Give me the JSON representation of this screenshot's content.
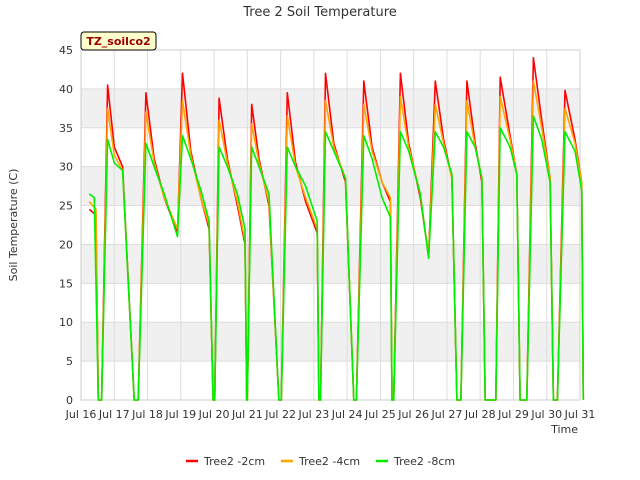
{
  "chart_data": {
    "type": "line",
    "title": "Tree 2 Soil Temperature",
    "xlabel": "Time",
    "ylabel": "Soil Temperature (C)",
    "annotation": "TZ_soilco2",
    "x_range": [
      "Jul 16",
      "Jul 31"
    ],
    "ylim": [
      0,
      45
    ],
    "y_ticks": [
      0,
      5,
      10,
      15,
      20,
      25,
      30,
      35,
      40,
      45
    ],
    "x_ticks": [
      "Jul 16",
      "Jul 17",
      "Jul 18",
      "Jul 19",
      "Jul 20",
      "Jul 21",
      "Jul 22",
      "Jul 23",
      "Jul 24",
      "Jul 25",
      "Jul 26",
      "Jul 27",
      "Jul 28",
      "Jul 29",
      "Jul 30",
      "Jul 31"
    ],
    "grid": true,
    "banded_background": true,
    "legend_position": "bottom",
    "colors": {
      "Tree2 -2cm": "#ff0000",
      "Tree2 -4cm": "#ffa500",
      "Tree2 -8cm": "#00ee00"
    },
    "series": [
      {
        "name": "Tree2 -2cm",
        "points": [
          [
            16.25,
            24.5
          ],
          [
            16.45,
            23.8
          ],
          [
            16.52,
            0
          ],
          [
            16.62,
            0
          ],
          [
            16.8,
            40.5
          ],
          [
            17.0,
            32.5
          ],
          [
            17.25,
            30.0
          ],
          [
            17.6,
            0
          ],
          [
            17.72,
            0
          ],
          [
            17.95,
            39.5
          ],
          [
            18.2,
            31.0
          ],
          [
            18.5,
            26.0
          ],
          [
            18.9,
            21.5
          ],
          [
            19.05,
            42.0
          ],
          [
            19.3,
            32.0
          ],
          [
            19.6,
            26.0
          ],
          [
            19.85,
            22.0
          ],
          [
            19.97,
            0
          ],
          [
            20.02,
            0
          ],
          [
            20.15,
            38.8
          ],
          [
            20.4,
            31.0
          ],
          [
            20.7,
            25.0
          ],
          [
            20.93,
            20.0
          ],
          [
            20.98,
            0
          ],
          [
            21.0,
            0
          ],
          [
            21.13,
            38.0
          ],
          [
            21.35,
            31.0
          ],
          [
            21.65,
            25.0
          ],
          [
            21.95,
            0
          ],
          [
            22.02,
            0
          ],
          [
            22.2,
            39.5
          ],
          [
            22.45,
            30.5
          ],
          [
            22.75,
            25.5
          ],
          [
            23.1,
            21.5
          ],
          [
            23.15,
            0
          ],
          [
            23.2,
            0
          ],
          [
            23.35,
            42.0
          ],
          [
            23.6,
            33.0
          ],
          [
            23.95,
            28.0
          ],
          [
            24.2,
            0
          ],
          [
            24.28,
            0
          ],
          [
            24.5,
            41.0
          ],
          [
            24.75,
            32.5
          ],
          [
            25.05,
            28.0
          ],
          [
            25.3,
            25.5
          ],
          [
            25.35,
            0
          ],
          [
            25.4,
            0
          ],
          [
            25.6,
            42.0
          ],
          [
            25.85,
            33.0
          ],
          [
            26.2,
            26.0
          ],
          [
            26.45,
            18.5
          ],
          [
            26.65,
            41.0
          ],
          [
            26.9,
            33.5
          ],
          [
            27.15,
            28.5
          ],
          [
            27.3,
            0
          ],
          [
            27.42,
            0
          ],
          [
            27.6,
            41.0
          ],
          [
            27.85,
            33.0
          ],
          [
            28.05,
            28.0
          ],
          [
            28.15,
            0
          ],
          [
            28.47,
            0
          ],
          [
            28.6,
            41.5
          ],
          [
            28.9,
            34.0
          ],
          [
            29.1,
            29.0
          ],
          [
            29.2,
            0
          ],
          [
            29.4,
            0
          ],
          [
            29.6,
            44.0
          ],
          [
            29.85,
            36.0
          ],
          [
            30.1,
            28.5
          ],
          [
            30.2,
            0
          ],
          [
            30.32,
            0
          ],
          [
            30.55,
            39.8
          ],
          [
            30.85,
            33.5
          ],
          [
            31.05,
            28.0
          ],
          [
            31.1,
            0
          ]
        ]
      },
      {
        "name": "Tree2 -4cm",
        "points": [
          [
            16.25,
            25.5
          ],
          [
            16.45,
            24.5
          ],
          [
            16.52,
            0
          ],
          [
            16.62,
            0
          ],
          [
            16.8,
            37.5
          ],
          [
            17.0,
            31.5
          ],
          [
            17.25,
            29.5
          ],
          [
            17.6,
            0
          ],
          [
            17.72,
            0
          ],
          [
            17.95,
            37.0
          ],
          [
            18.2,
            30.5
          ],
          [
            18.5,
            26.0
          ],
          [
            18.9,
            22.0
          ],
          [
            19.05,
            38.5
          ],
          [
            19.3,
            31.5
          ],
          [
            19.6,
            26.0
          ],
          [
            19.85,
            22.5
          ],
          [
            19.97,
            0
          ],
          [
            20.02,
            0
          ],
          [
            20.15,
            36.0
          ],
          [
            20.4,
            30.5
          ],
          [
            20.7,
            25.5
          ],
          [
            20.93,
            20.5
          ],
          [
            20.98,
            0
          ],
          [
            21.0,
            0
          ],
          [
            21.13,
            35.5
          ],
          [
            21.35,
            30.5
          ],
          [
            21.65,
            25.5
          ],
          [
            21.95,
            0
          ],
          [
            22.02,
            0
          ],
          [
            22.2,
            36.5
          ],
          [
            22.45,
            30.0
          ],
          [
            22.75,
            26.0
          ],
          [
            23.1,
            22.0
          ],
          [
            23.15,
            0
          ],
          [
            23.2,
            0
          ],
          [
            23.35,
            38.5
          ],
          [
            23.6,
            32.5
          ],
          [
            23.95,
            28.5
          ],
          [
            24.2,
            0
          ],
          [
            24.28,
            0
          ],
          [
            24.5,
            38.0
          ],
          [
            24.75,
            32.0
          ],
          [
            25.05,
            28.0
          ],
          [
            25.3,
            26.0
          ],
          [
            25.35,
            0
          ],
          [
            25.4,
            0
          ],
          [
            25.6,
            39.0
          ],
          [
            25.85,
            32.5
          ],
          [
            26.2,
            26.5
          ],
          [
            26.45,
            18.5
          ],
          [
            26.65,
            38.0
          ],
          [
            26.9,
            33.0
          ],
          [
            27.15,
            28.5
          ],
          [
            27.3,
            0
          ],
          [
            27.42,
            0
          ],
          [
            27.6,
            38.5
          ],
          [
            27.85,
            32.5
          ],
          [
            28.05,
            28.5
          ],
          [
            28.15,
            0
          ],
          [
            28.47,
            0
          ],
          [
            28.6,
            39.0
          ],
          [
            28.9,
            33.5
          ],
          [
            29.1,
            29.0
          ],
          [
            29.2,
            0
          ],
          [
            29.4,
            0
          ],
          [
            29.6,
            41.0
          ],
          [
            29.85,
            35.0
          ],
          [
            30.1,
            28.5
          ],
          [
            30.2,
            0
          ],
          [
            30.32,
            0
          ],
          [
            30.55,
            37.5
          ],
          [
            30.85,
            33.0
          ],
          [
            31.05,
            28.0
          ],
          [
            31.1,
            0
          ]
        ]
      },
      {
        "name": "Tree2 -8cm",
        "points": [
          [
            16.25,
            26.5
          ],
          [
            16.4,
            26.0
          ],
          [
            16.52,
            0
          ],
          [
            16.62,
            0
          ],
          [
            16.8,
            33.5
          ],
          [
            17.0,
            30.5
          ],
          [
            17.25,
            29.5
          ],
          [
            17.6,
            0
          ],
          [
            17.72,
            0
          ],
          [
            17.95,
            33.0
          ],
          [
            18.2,
            30.0
          ],
          [
            18.5,
            26.5
          ],
          [
            18.9,
            21.0
          ],
          [
            19.05,
            34.0
          ],
          [
            19.3,
            31.0
          ],
          [
            19.6,
            27.0
          ],
          [
            19.85,
            23.0
          ],
          [
            19.97,
            0
          ],
          [
            20.02,
            0
          ],
          [
            20.15,
            32.5
          ],
          [
            20.4,
            30.0
          ],
          [
            20.7,
            26.5
          ],
          [
            20.93,
            22.0
          ],
          [
            20.98,
            0
          ],
          [
            21.0,
            0
          ],
          [
            21.13,
            32.5
          ],
          [
            21.35,
            30.0
          ],
          [
            21.65,
            26.5
          ],
          [
            21.95,
            0
          ],
          [
            22.02,
            0
          ],
          [
            22.2,
            32.5
          ],
          [
            22.45,
            30.0
          ],
          [
            22.75,
            27.5
          ],
          [
            23.1,
            23.0
          ],
          [
            23.15,
            0
          ],
          [
            23.2,
            0
          ],
          [
            23.35,
            34.5
          ],
          [
            23.6,
            32.0
          ],
          [
            23.95,
            28.5
          ],
          [
            24.2,
            0
          ],
          [
            24.28,
            0
          ],
          [
            24.5,
            34.0
          ],
          [
            24.75,
            31.0
          ],
          [
            25.05,
            26.0
          ],
          [
            25.3,
            23.5
          ],
          [
            25.35,
            0
          ],
          [
            25.4,
            0
          ],
          [
            25.6,
            34.5
          ],
          [
            25.85,
            32.0
          ],
          [
            26.2,
            26.5
          ],
          [
            26.45,
            18.2
          ],
          [
            26.65,
            34.5
          ],
          [
            26.9,
            32.5
          ],
          [
            27.15,
            29.0
          ],
          [
            27.3,
            0
          ],
          [
            27.42,
            0
          ],
          [
            27.6,
            34.5
          ],
          [
            27.85,
            32.5
          ],
          [
            28.05,
            28.5
          ],
          [
            28.15,
            0
          ],
          [
            28.47,
            0
          ],
          [
            28.6,
            35.0
          ],
          [
            28.9,
            32.5
          ],
          [
            29.1,
            29.0
          ],
          [
            29.2,
            0
          ],
          [
            29.4,
            0
          ],
          [
            29.6,
            36.5
          ],
          [
            29.85,
            33.5
          ],
          [
            30.1,
            28.0
          ],
          [
            30.2,
            0
          ],
          [
            30.32,
            0
          ],
          [
            30.55,
            34.5
          ],
          [
            30.85,
            32.0
          ],
          [
            31.05,
            27.0
          ],
          [
            31.1,
            0
          ]
        ]
      }
    ]
  }
}
